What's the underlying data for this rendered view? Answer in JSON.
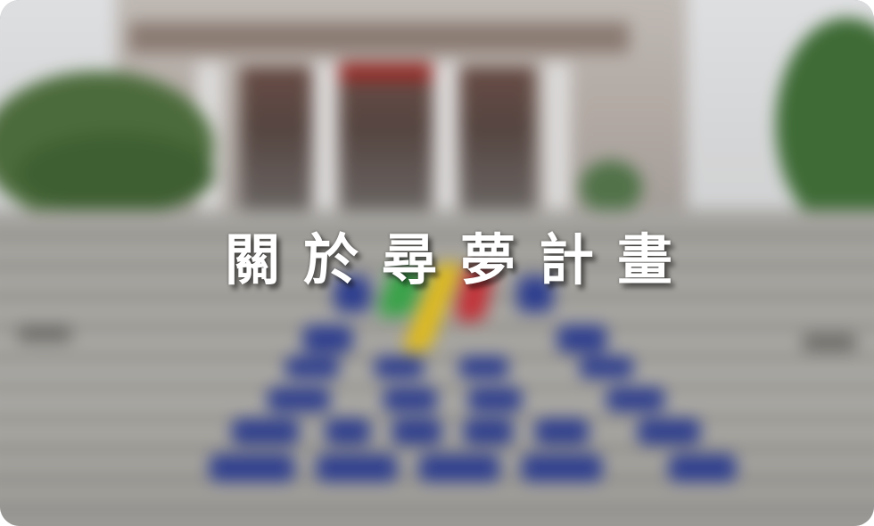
{
  "banner": {
    "title": "關於尋夢計畫"
  },
  "colors": {
    "title_text": "#ffffff",
    "stair_mark_blue": "#2e3f93",
    "stripe_green": "#3aa84a",
    "stripe_yellow": "#e8c21d",
    "stripe_red": "#c9343a"
  }
}
